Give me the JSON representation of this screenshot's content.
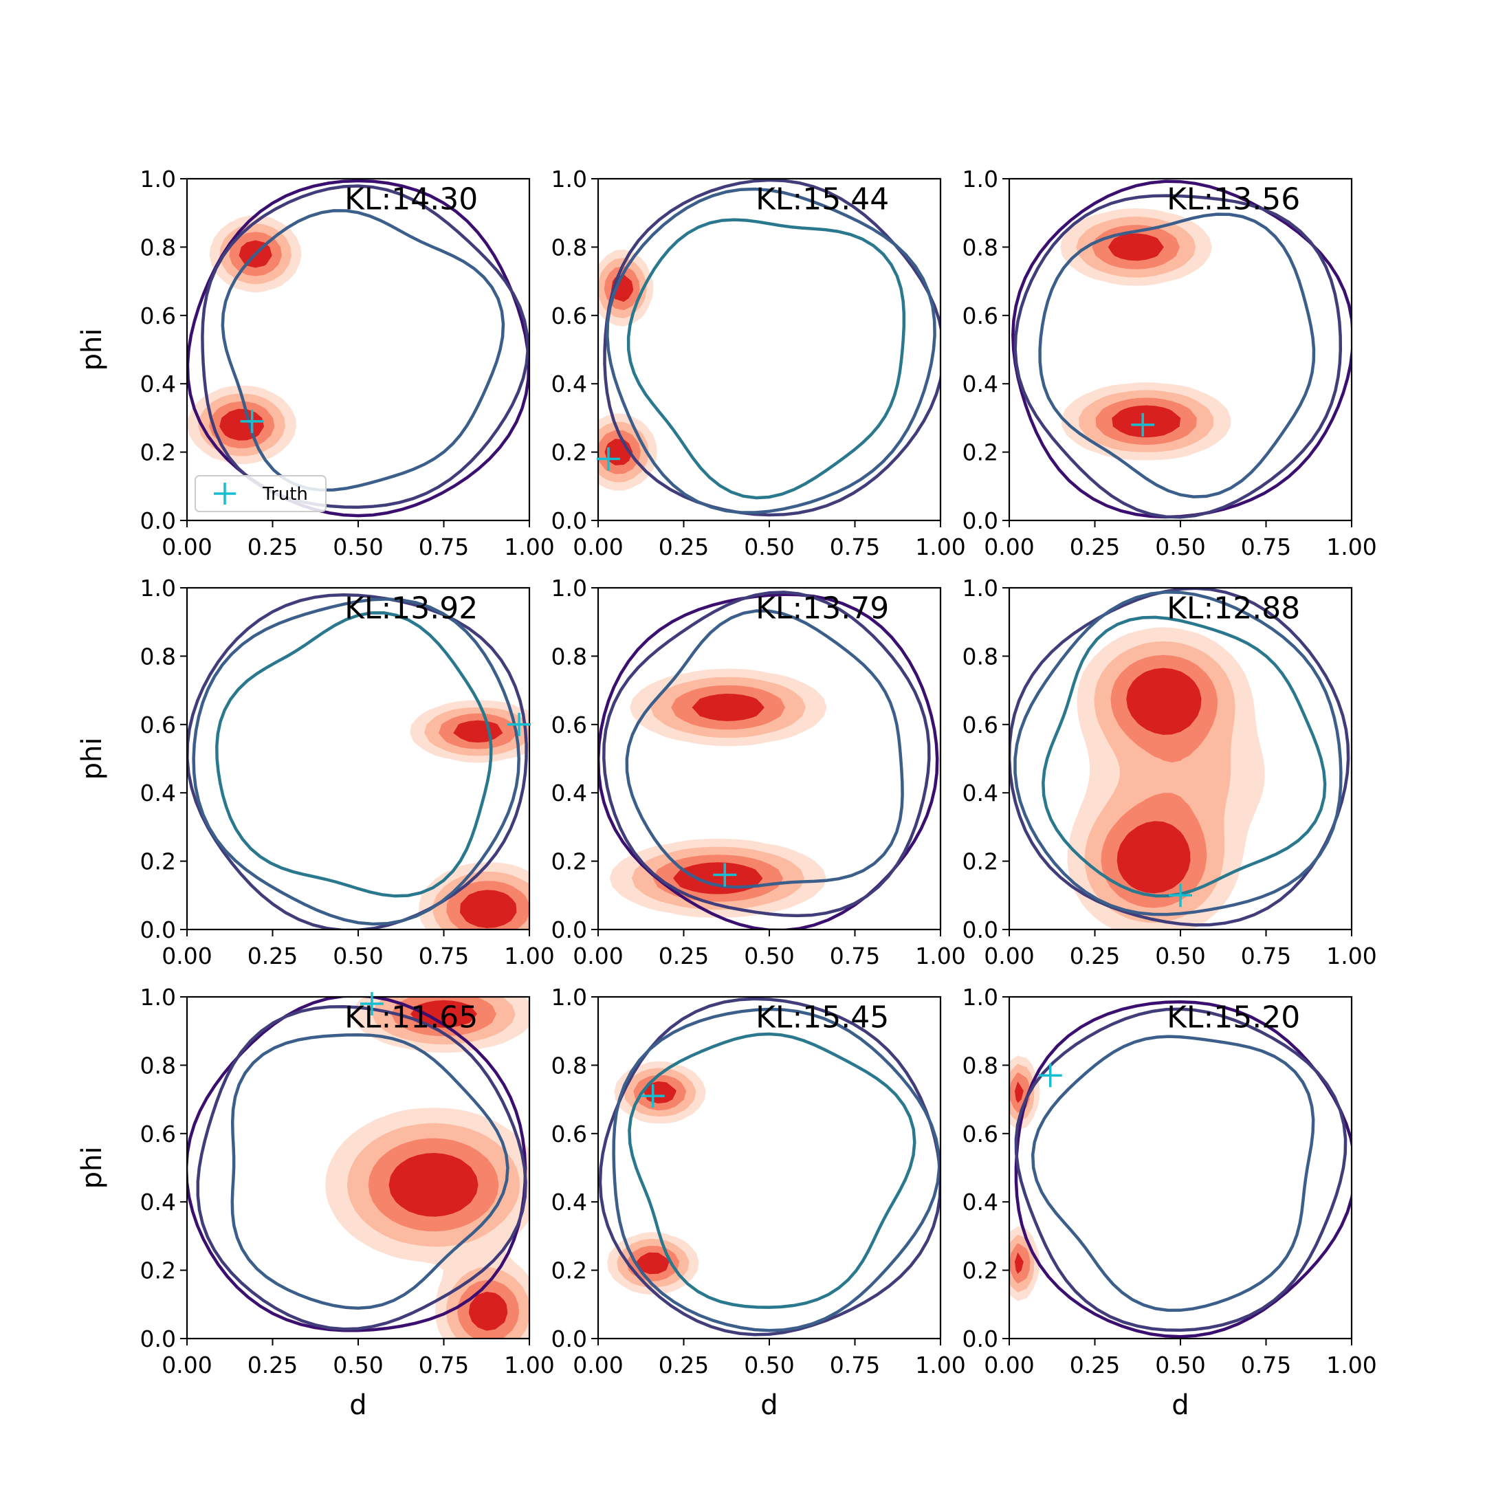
{
  "chart_data": {
    "type": "contour",
    "xlabel": "d",
    "ylabel": "phi",
    "xlim": [
      0,
      1
    ],
    "ylim": [
      0,
      1
    ],
    "xticks": [
      "0.00",
      "0.25",
      "0.50",
      "0.75",
      "1.00"
    ],
    "yticks": [
      "0.0",
      "0.2",
      "0.4",
      "0.6",
      "0.8",
      "1.0"
    ],
    "legend": {
      "label": "Truth",
      "placement": "lower-left",
      "color": "#17becf"
    },
    "colors": {
      "fill_levels": [
        "#fee0d2",
        "#fcbba1",
        "#f6846a",
        "#d7201f"
      ],
      "line_levels": [
        "#3b0f70",
        "#413d7b",
        "#3b5f8a",
        "#2a788e",
        "#21918c"
      ]
    },
    "panels": [
      {
        "kl": "KL:14.30",
        "truth": [
          0.19,
          0.29
        ],
        "modes": [
          {
            "x": 0.16,
            "y": 0.28,
            "sx": 0.07,
            "sy": 0.05,
            "w": 1.0
          },
          {
            "x": 0.2,
            "y": 0.78,
            "sx": 0.06,
            "sy": 0.05,
            "w": 0.9
          }
        ]
      },
      {
        "kl": "KL:15.44",
        "truth": [
          0.03,
          0.18
        ],
        "modes": [
          {
            "x": 0.06,
            "y": 0.2,
            "sx": 0.05,
            "sy": 0.05,
            "w": 0.9
          },
          {
            "x": 0.07,
            "y": 0.68,
            "sx": 0.04,
            "sy": 0.05,
            "w": 0.9
          }
        ]
      },
      {
        "kl": "KL:13.56",
        "truth": [
          0.39,
          0.28
        ],
        "modes": [
          {
            "x": 0.4,
            "y": 0.29,
            "sx": 0.11,
            "sy": 0.05,
            "w": 1.0
          },
          {
            "x": 0.37,
            "y": 0.8,
            "sx": 0.1,
            "sy": 0.05,
            "w": 0.9
          }
        ]
      },
      {
        "kl": "KL:13.92",
        "truth": [
          0.97,
          0.6
        ],
        "modes": [
          {
            "x": 0.88,
            "y": 0.06,
            "sx": 0.09,
            "sy": 0.06,
            "w": 1.0
          },
          {
            "x": 0.85,
            "y": 0.58,
            "sx": 0.09,
            "sy": 0.04,
            "w": 0.9
          }
        ]
      },
      {
        "kl": "KL:13.79",
        "truth": [
          0.37,
          0.16
        ],
        "modes": [
          {
            "x": 0.35,
            "y": 0.15,
            "sx": 0.14,
            "sy": 0.05,
            "w": 1.0
          },
          {
            "x": 0.38,
            "y": 0.65,
            "sx": 0.13,
            "sy": 0.05,
            "w": 0.9
          }
        ]
      },
      {
        "kl": "KL:12.88",
        "truth": [
          0.5,
          0.1
        ],
        "modes": [
          {
            "x": 0.42,
            "y": 0.2,
            "sx": 0.11,
            "sy": 0.1,
            "w": 1.0
          },
          {
            "x": 0.45,
            "y": 0.68,
            "sx": 0.11,
            "sy": 0.09,
            "w": 1.0
          },
          {
            "x": 0.5,
            "y": 0.45,
            "sx": 0.15,
            "sy": 0.12,
            "w": 0.3
          }
        ]
      },
      {
        "kl": "KL:11.65",
        "truth": [
          0.54,
          0.98
        ],
        "modes": [
          {
            "x": 0.72,
            "y": 0.45,
            "sx": 0.14,
            "sy": 0.1,
            "w": 1.0
          },
          {
            "x": 0.75,
            "y": 0.95,
            "sx": 0.12,
            "sy": 0.05,
            "w": 0.9
          },
          {
            "x": 0.88,
            "y": 0.08,
            "sx": 0.07,
            "sy": 0.07,
            "w": 0.9
          }
        ]
      },
      {
        "kl": "KL:15.45",
        "truth": [
          0.16,
          0.71
        ],
        "modes": [
          {
            "x": 0.18,
            "y": 0.72,
            "sx": 0.06,
            "sy": 0.04,
            "w": 0.9
          },
          {
            "x": 0.16,
            "y": 0.22,
            "sx": 0.06,
            "sy": 0.04,
            "w": 0.9
          }
        ]
      },
      {
        "kl": "KL:15.20",
        "truth": [
          0.12,
          0.77
        ],
        "modes": [
          {
            "x": 0.03,
            "y": 0.72,
            "sx": 0.025,
            "sy": 0.05,
            "w": 0.8
          },
          {
            "x": 0.03,
            "y": 0.22,
            "sx": 0.025,
            "sy": 0.05,
            "w": 0.8
          }
        ]
      }
    ]
  }
}
